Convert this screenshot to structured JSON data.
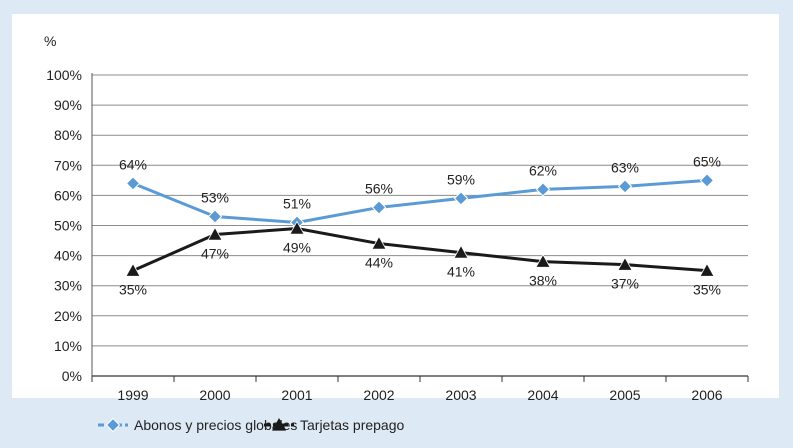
{
  "chart_data": {
    "type": "line",
    "ylabel": "%",
    "categories": [
      "1999",
      "2000",
      "2001",
      "2002",
      "2003",
      "2004",
      "2005",
      "2006"
    ],
    "ylim": [
      0,
      100
    ],
    "yticks": [
      "0%",
      "10%",
      "20%",
      "30%",
      "40%",
      "50%",
      "60%",
      "70%",
      "80%",
      "90%",
      "100%"
    ],
    "grid": true,
    "legend_position": "bottom-left",
    "series": [
      {
        "name": "Abonos y precios globales",
        "values": [
          64,
          53,
          51,
          56,
          59,
          62,
          63,
          65
        ],
        "labels": [
          "64%",
          "53%",
          "51%",
          "56%",
          "59%",
          "62%",
          "63%",
          "65%"
        ],
        "color": "#5b9bd5",
        "marker": "diamond"
      },
      {
        "name": "Tarjetas prepago",
        "values": [
          35,
          47,
          49,
          44,
          41,
          38,
          37,
          35
        ],
        "labels": [
          "35%",
          "47%",
          "49%",
          "44%",
          "41%",
          "38%",
          "37%",
          "35%"
        ],
        "color": "#1a1a1a",
        "marker": "triangle"
      }
    ]
  }
}
